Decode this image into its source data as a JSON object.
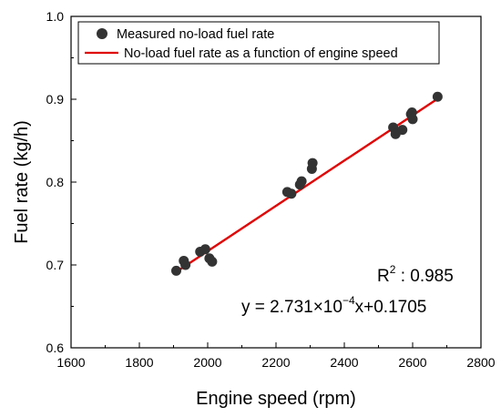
{
  "chart_data": {
    "type": "scatter",
    "xlabel": "Engine speed (rpm)",
    "ylabel": "Fuel rate (kg/h)",
    "xlim": [
      1600,
      2800
    ],
    "ylim": [
      0.6,
      1.0
    ],
    "xticks": [
      1600,
      1800,
      2000,
      2200,
      2400,
      2600,
      2800
    ],
    "yticks": [
      0.6,
      0.7,
      0.8,
      0.9,
      1.0
    ],
    "xtick_labels": [
      "1600",
      "1800",
      "2000",
      "2200",
      "2400",
      "2600",
      "2800"
    ],
    "ytick_labels": [
      "0.6",
      "0.7",
      "0.8",
      "0.9",
      "1.0"
    ],
    "grid": false,
    "legend_position": "top-left",
    "series": [
      {
        "name": "Measured no-load fuel rate",
        "type": "scatter",
        "color": "#333333",
        "points": [
          {
            "x": 1908,
            "y": 0.693
          },
          {
            "x": 1930,
            "y": 0.705
          },
          {
            "x": 1935,
            "y": 0.7
          },
          {
            "x": 1978,
            "y": 0.716
          },
          {
            "x": 1993,
            "y": 0.719
          },
          {
            "x": 2005,
            "y": 0.708
          },
          {
            "x": 2013,
            "y": 0.704
          },
          {
            "x": 2233,
            "y": 0.788
          },
          {
            "x": 2245,
            "y": 0.786
          },
          {
            "x": 2270,
            "y": 0.797
          },
          {
            "x": 2275,
            "y": 0.801
          },
          {
            "x": 2305,
            "y": 0.816
          },
          {
            "x": 2307,
            "y": 0.823
          },
          {
            "x": 2543,
            "y": 0.866
          },
          {
            "x": 2550,
            "y": 0.858
          },
          {
            "x": 2570,
            "y": 0.863
          },
          {
            "x": 2595,
            "y": 0.882
          },
          {
            "x": 2598,
            "y": 0.884
          },
          {
            "x": 2600,
            "y": 0.876
          },
          {
            "x": 2673,
            "y": 0.903
          }
        ]
      },
      {
        "name": "No-load fuel rate as a function of engine speed",
        "type": "line",
        "color": "#e00000",
        "slope": 0.0002731,
        "intercept": 0.1705,
        "x_range": [
          1905,
          2680
        ]
      }
    ],
    "annotations": {
      "r2_label": "R",
      "r2_sup": "2",
      "r2_value": " : 0.985",
      "eq_prefix": "y = 2.731×10",
      "eq_exp": "−4",
      "eq_suffix": "x+0.1705"
    }
  }
}
